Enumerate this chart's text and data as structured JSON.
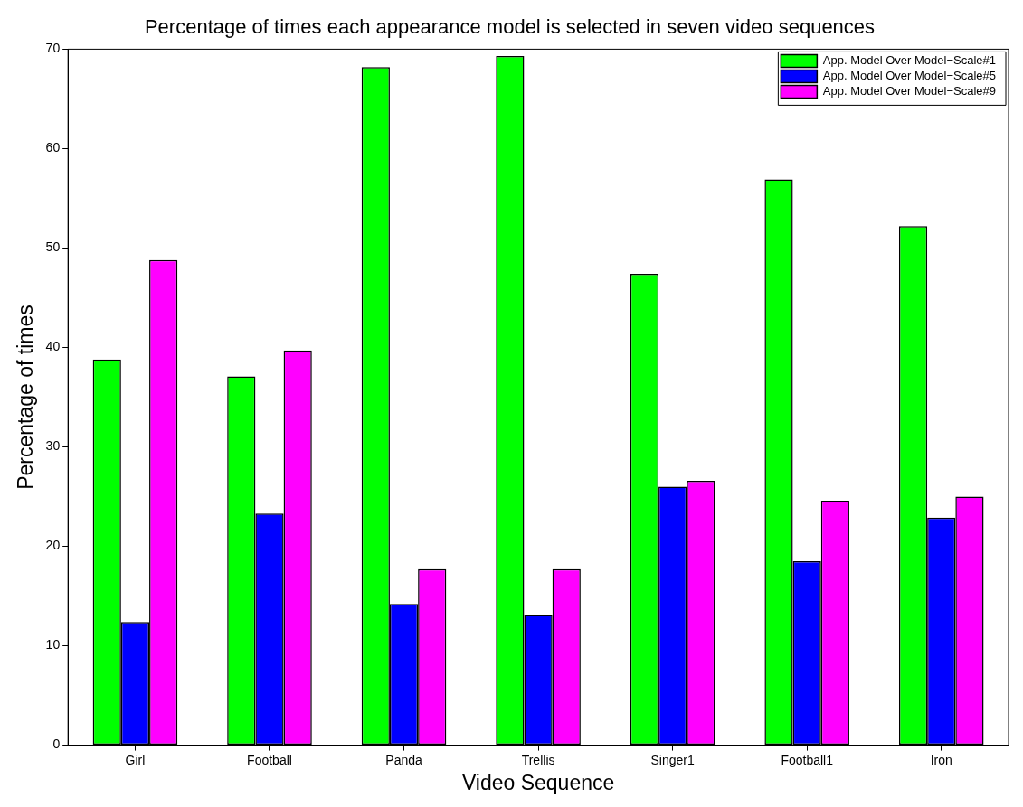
{
  "chart_data": {
    "type": "bar",
    "title": "Percentage of times each appearance model is selected in seven video sequences",
    "xlabel": "Video Sequence",
    "ylabel": "Percentage of times",
    "categories": [
      "Girl",
      "Football",
      "Panda",
      "Trellis",
      "Singer1",
      "Football1",
      "Iron"
    ],
    "series": [
      {
        "name": "App. Model Over Model−Scale#1",
        "color": "#00ff00",
        "values": [
          38.8,
          37.1,
          68.2,
          69.3,
          47.4,
          56.9,
          52.2
        ]
      },
      {
        "name": "App. Model Over Model−Scale#5",
        "color": "#0000ff",
        "values": [
          12.4,
          23.3,
          14.2,
          13.1,
          26.0,
          18.5,
          22.9
        ]
      },
      {
        "name": "App. Model Over Model−Scale#9",
        "color": "#ff00ff",
        "values": [
          48.8,
          39.7,
          17.7,
          17.7,
          26.6,
          24.6,
          25.0
        ]
      }
    ],
    "ylim": [
      0,
      70
    ],
    "yticks": [
      0,
      10,
      20,
      30,
      40,
      50,
      60,
      70
    ],
    "grid": false,
    "legend": "top right"
  }
}
